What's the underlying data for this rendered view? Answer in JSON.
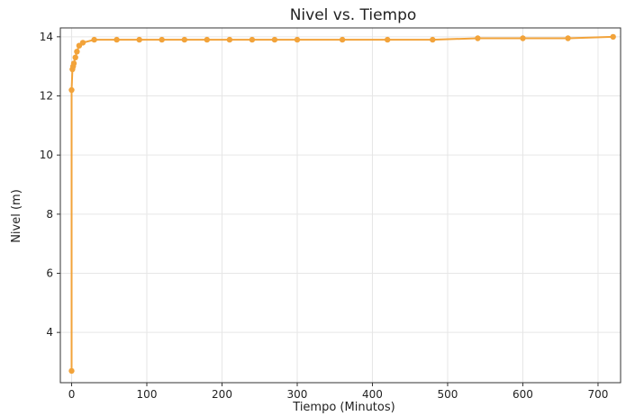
{
  "chart_data": {
    "type": "line",
    "title": "Nivel vs. Tiempo",
    "xlabel": "Tiempo (Minutos)",
    "ylabel": "Nivel (m)",
    "xlim": [
      -15,
      730
    ],
    "ylim": [
      2.3,
      14.3
    ],
    "xticks": [
      0,
      100,
      200,
      300,
      400,
      500,
      600,
      700
    ],
    "yticks": [
      4,
      6,
      8,
      10,
      12,
      14
    ],
    "grid": true,
    "series": [
      {
        "color": "#f2a33a",
        "points": [
          [
            0,
            2.7
          ],
          [
            0,
            12.2
          ],
          [
            1,
            12.9
          ],
          [
            2,
            13.0
          ],
          [
            3,
            13.1
          ],
          [
            5,
            13.3
          ],
          [
            7,
            13.5
          ],
          [
            10,
            13.7
          ],
          [
            15,
            13.8
          ],
          [
            30,
            13.9
          ],
          [
            60,
            13.9
          ],
          [
            90,
            13.9
          ],
          [
            120,
            13.9
          ],
          [
            150,
            13.9
          ],
          [
            180,
            13.9
          ],
          [
            210,
            13.9
          ],
          [
            240,
            13.9
          ],
          [
            270,
            13.9
          ],
          [
            300,
            13.9
          ],
          [
            360,
            13.9
          ],
          [
            420,
            13.9
          ],
          [
            480,
            13.9
          ],
          [
            540,
            13.95
          ],
          [
            600,
            13.95
          ],
          [
            660,
            13.95
          ],
          [
            720,
            14.0
          ]
        ]
      }
    ]
  }
}
